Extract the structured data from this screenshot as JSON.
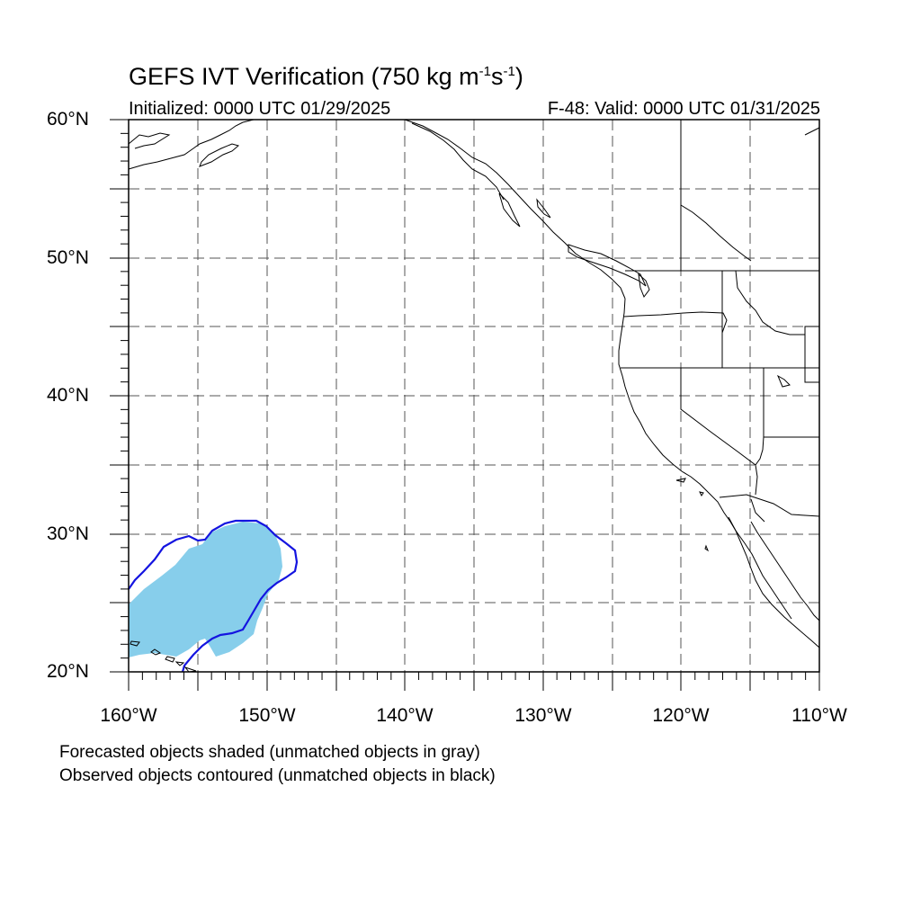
{
  "title": {
    "main": "GEFS IVT Verification (750 kg m",
    "exp1": "-1",
    "mid": "s",
    "exp2": "-1",
    "end": ")"
  },
  "initialized": "Initialized: 0000 UTC 01/29/2025",
  "valid": "F-48: Valid: 0000 UTC 01/31/2025",
  "lat_labels": [
    "60°N",
    "50°N",
    "40°N",
    "30°N",
    "20°N"
  ],
  "lon_labels": [
    "160°W",
    "150°W",
    "140°W",
    "130°W",
    "120°W",
    "110°W"
  ],
  "notes": [
    "Forecasted objects shaded (unmatched objects in gray)",
    "Observed objects contoured (unmatched objects in black)"
  ],
  "map": {
    "lon_range": [
      -160,
      -110
    ],
    "lat_range": [
      20,
      60
    ],
    "gridline_spacing_deg": 5,
    "gridline_style": "dashed",
    "colors": {
      "forecast_fill": "#87CEEB",
      "observed_contour": "#1414e0",
      "coastline": "#000000"
    }
  }
}
